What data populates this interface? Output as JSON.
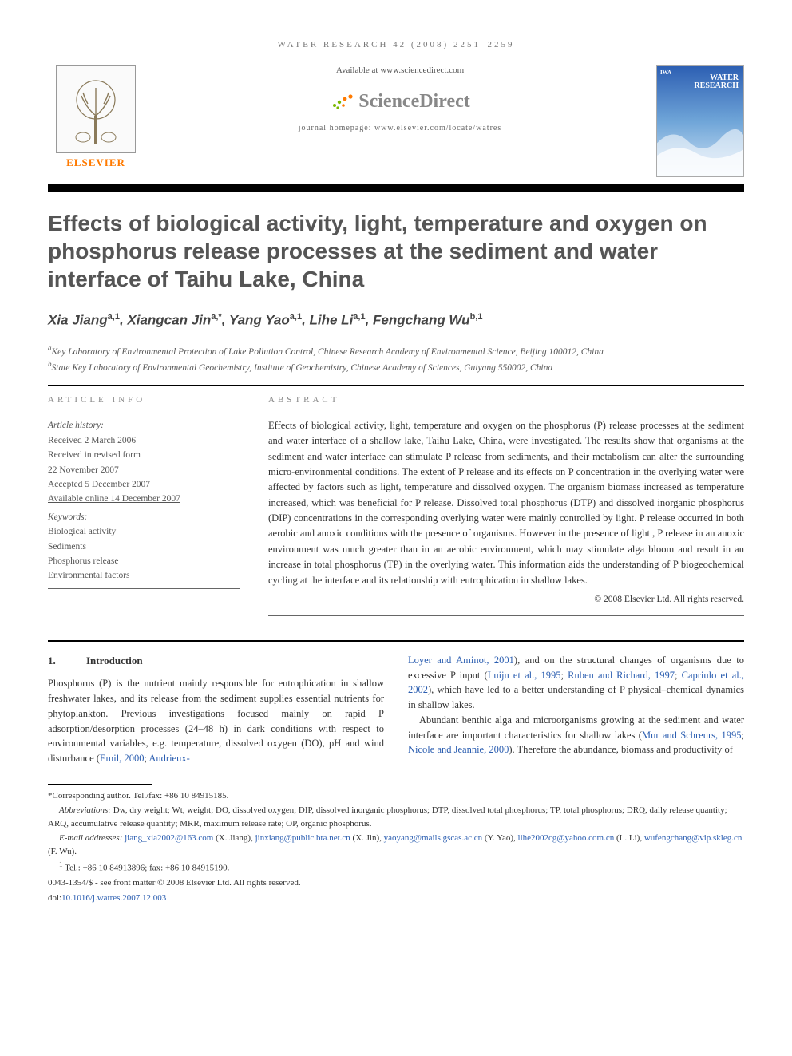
{
  "colors": {
    "accent_orange": "#ff7a00",
    "link_blue": "#2a5db0",
    "title_grey": "#555555",
    "muted_grey": "#888888"
  },
  "running_head": "WATER RESEARCH 42 (2008) 2251–2259",
  "header": {
    "available_at": "Available at www.sciencedirect.com",
    "sciencedirect": "ScienceDirect",
    "homepage": "journal homepage: www.elsevier.com/locate/watres",
    "publisher": "ELSEVIER",
    "cover_iwa": "IWA",
    "cover_title_1": "WATER",
    "cover_title_2": "RESEARCH"
  },
  "title": "Effects of biological activity, light, temperature and oxygen on phosphorus release processes at the sediment and water interface of Taihu Lake, China",
  "authors_html": "Xia Jiang<sup>a,1</sup>, Xiangcan Jin<sup>a,*</sup>, Yang Yao<sup>a,1</sup>, Lihe Li<sup>a,1</sup>, Fengchang Wu<sup>b,1</sup>",
  "affiliations": {
    "a": "Key Laboratory of Environmental Protection of Lake Pollution Control, Chinese Research Academy of Environmental Science, Beijing 100012, China",
    "b": "State Key Laboratory of Environmental Geochemistry, Institute of Geochemistry, Chinese Academy of Sciences, Guiyang 550002, China"
  },
  "article_info": {
    "heading": "ARTICLE INFO",
    "history_label": "Article history:",
    "received": "Received 2 March 2006",
    "revised_label": "Received in revised form",
    "revised_date": "22 November 2007",
    "accepted": "Accepted 5 December 2007",
    "online": "Available online 14 December 2007",
    "keywords_label": "Keywords:",
    "keywords": [
      "Biological activity",
      "Sediments",
      "Phosphorus release",
      "Environmental factors"
    ]
  },
  "abstract": {
    "heading": "ABSTRACT",
    "text": "Effects of biological activity, light, temperature and oxygen on the phosphorus (P) release processes at the sediment and water interface of a shallow lake, Taihu Lake, China, were investigated. The results show that organisms at the sediment and water interface can stimulate P release from sediments, and their metabolism can alter the surrounding micro-environmental conditions. The extent of P release and its effects on P concentration in the overlying water were affected by factors such as light, temperature and dissolved oxygen. The organism biomass increased as temperature increased, which was beneficial for P release. Dissolved total phosphorus (DTP) and dissolved inorganic phosphorus (DIP) concentrations in the corresponding overlying water were mainly controlled by light. P release occurred in both aerobic and anoxic conditions with the presence of organisms. However in the presence of light , P release in an anoxic environment was much greater than in an aerobic environment, which may stimulate alga bloom and result in an increase in total phosphorus (TP) in the overlying water. This information aids the understanding of P biogeochemical cycling at the interface and its relationship with eutrophication in shallow lakes.",
    "copyright": "© 2008 Elsevier Ltd. All rights reserved."
  },
  "body": {
    "section_number": "1.",
    "section_title": "Introduction",
    "col1_p1_a": "Phosphorus (P) is the nutrient mainly responsible for eutrophication in shallow freshwater lakes, and its release from the sediment supplies essential nutrients for phytoplankton. Previous investigations focused mainly on rapid P adsorption/desorption processes (24–48 h) in dark conditions with respect to environmental variables, e.g. temperature, dissolved oxygen (DO), pH and wind disturbance (",
    "col1_link1": "Emil, 2000",
    "col1_sep1": "; ",
    "col1_link2": "Andrieux-",
    "col2_link1": "Loyer and Aminot, 2001",
    "col2_p1_a": "), and on the structural changes of organisms due to excessive P input (",
    "col2_link2": "Luijn et al., 1995",
    "col2_sep1": "; ",
    "col2_link3": "Ruben and Richard, 1997",
    "col2_sep2": "; ",
    "col2_link4": "Capriulo et al., 2002",
    "col2_p1_b": "), which have led to a better understanding of P physical–chemical dynamics in shallow lakes.",
    "col2_p2_a": "Abundant benthic alga and microorganisms growing at the sediment and water interface are important characteristics for shallow lakes (",
    "col2_link5": "Mur and Schreurs, 1995",
    "col2_sep3": "; ",
    "col2_link6": "Nicole and Jeannie, 2000",
    "col2_p2_b": "). Therefore the abundance, biomass and productivity of"
  },
  "footnotes": {
    "corresponding": "*Corresponding author. Tel./fax: +86 10 84915185.",
    "abbrev_label": "Abbreviations:",
    "abbrev_text": " Dw, dry weight; Wt, weight; DO, dissolved oxygen; DIP, dissolved inorganic phosphorus; DTP, dissolved total phosphorus; TP, total phosphorus; DRQ, daily release quantity; ARQ, accumulative release quantity; MRR, maximum release rate; OP, organic phosphorus.",
    "emails_label": "E-mail addresses: ",
    "emails": [
      {
        "addr": "jiang_xia2002@163.com",
        "who": " (X. Jiang), "
      },
      {
        "addr": "jinxiang@public.bta.net.cn",
        "who": " (X. Jin), "
      },
      {
        "addr": "yaoyang@mails.gscas.ac.cn",
        "who": " (Y. Yao), "
      },
      {
        "addr": "lihe2002cg@yahoo.com.cn",
        "who": " (L. Li), "
      },
      {
        "addr": "wufengchang@vip.skleg.cn",
        "who": " (F. Wu)."
      }
    ],
    "tel_note": "Tel.: +86 10 84913896; fax: +86 10 84915190.",
    "front_matter": "0043-1354/$ - see front matter © 2008 Elsevier Ltd. All rights reserved.",
    "doi_label": "doi:",
    "doi": "10.1016/j.watres.2007.12.003"
  }
}
